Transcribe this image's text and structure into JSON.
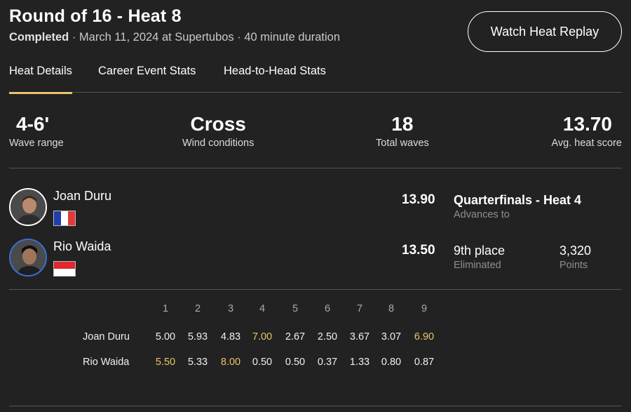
{
  "header": {
    "title": "Round of 16 - Heat 8",
    "status": "Completed",
    "details": " · March 11, 2024 at Supertubos · 40 minute duration",
    "replay_label": "Watch Heat Replay"
  },
  "tabs": [
    {
      "label": "Heat Details",
      "active": true
    },
    {
      "label": "Career Event Stats",
      "active": false
    },
    {
      "label": "Head-to-Head Stats",
      "active": false
    }
  ],
  "stats": {
    "wave_range": {
      "value": "4-6'",
      "label": "Wave range"
    },
    "wind": {
      "value": "Cross",
      "label": "Wind conditions"
    },
    "total_waves": {
      "value": "18",
      "label": "Total waves"
    },
    "avg_score": {
      "value": "13.70",
      "label": "Avg. heat score"
    }
  },
  "surfers": [
    {
      "name": "Joan Duru",
      "flag": "france-flag",
      "score": "13.90",
      "outcome": "Quarterfinals - Heat 4",
      "outcome_sub": "Advances to",
      "points": "",
      "points_sub": ""
    },
    {
      "name": "Rio Waida",
      "flag": "indonesia-flag",
      "score": "13.50",
      "outcome": "9th place",
      "outcome_sub": "Eliminated",
      "points": "3,320",
      "points_sub": "Points"
    }
  ],
  "wave_numbers": [
    "1",
    "2",
    "3",
    "4",
    "5",
    "6",
    "7",
    "8",
    "9"
  ],
  "wave_scores": [
    {
      "name": "Joan Duru",
      "scores": [
        "5.00",
        "5.93",
        "4.83",
        "7.00",
        "2.67",
        "2.50",
        "3.67",
        "3.07",
        "6.90"
      ],
      "highlight": [
        3,
        8
      ]
    },
    {
      "name": "Rio Waida",
      "scores": [
        "5.50",
        "5.33",
        "8.00",
        "0.50",
        "0.50",
        "0.37",
        "1.33",
        "0.80",
        "0.87"
      ],
      "highlight": [
        0,
        2
      ]
    }
  ],
  "colors": {
    "accent": "#e9c46a",
    "background": "#222222",
    "france": [
      "#1f3fa8",
      "#ffffff",
      "#e23a3a"
    ],
    "indonesia": [
      "#e0282e",
      "#ffffff"
    ],
    "avatar_ring_blue": "#3b6fd8"
  }
}
